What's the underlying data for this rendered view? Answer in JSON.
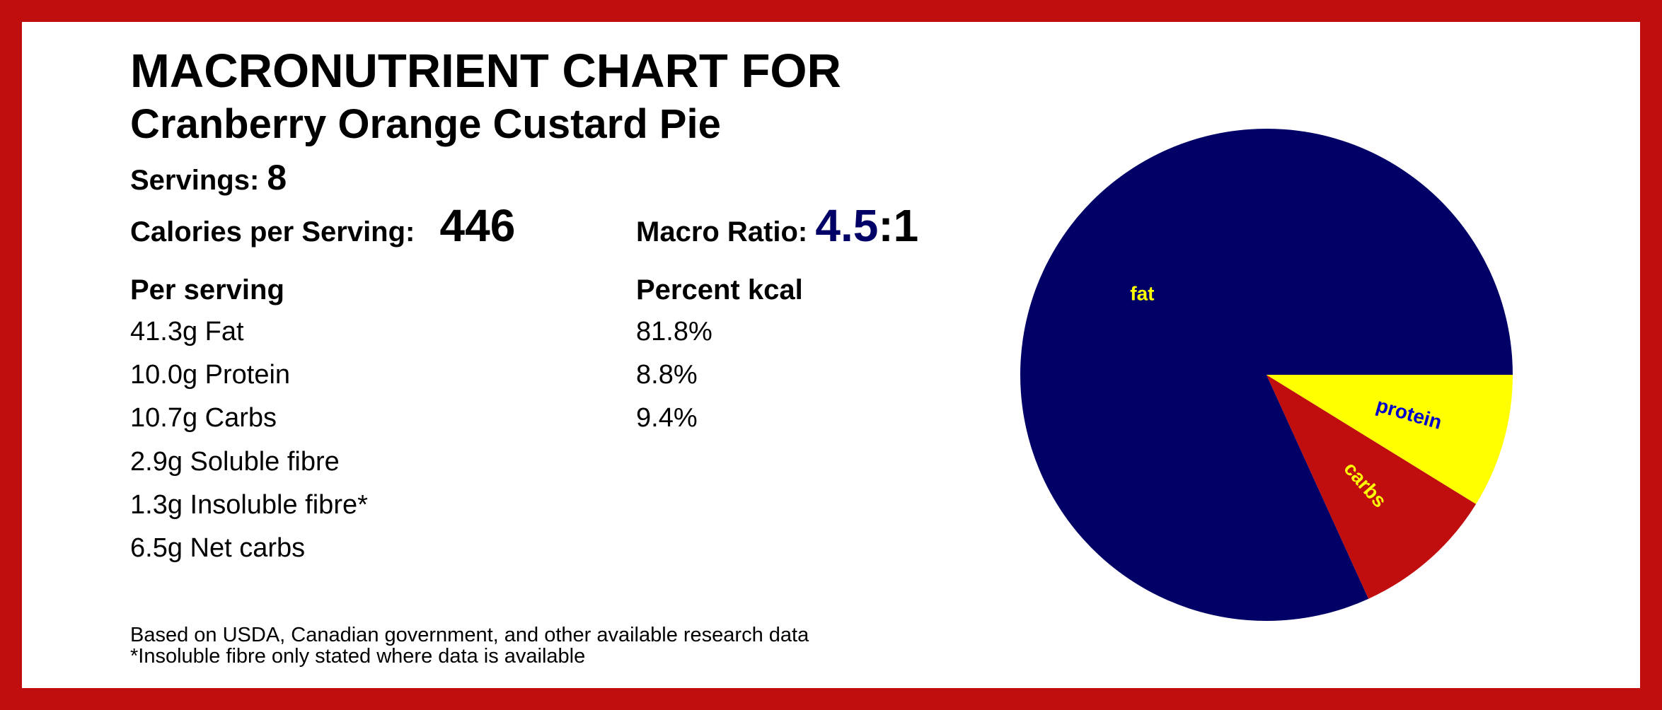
{
  "header": {
    "title": "MACRONUTRIENT CHART FOR",
    "subtitle": "Cranberry Orange Custard Pie"
  },
  "summary": {
    "servings_label": "Servings:",
    "servings_value": "8",
    "calories_label": "Calories per Serving:",
    "calories_value": "446",
    "ratio_label": "Macro Ratio:",
    "ratio_value": "4.5",
    "ratio_suffix": ":1"
  },
  "per_serving": {
    "heading": "Per serving",
    "rows": [
      "41.3g Fat",
      "10.0g Protein",
      "10.7g Carbs",
      "2.9g Soluble fibre",
      "1.3g Insoluble fibre*",
      "6.5g Net carbs"
    ]
  },
  "percent_kcal": {
    "heading": "Percent kcal",
    "rows": [
      "81.8%",
      "8.8%",
      "9.4%"
    ]
  },
  "footer": {
    "line1": "Based on USDA, Canadian government, and other available research data",
    "line2": "*Insoluble fibre only stated where data is available"
  },
  "colors": {
    "border": "#c00d0d",
    "fat": "#000066",
    "protein": "#ffff00",
    "carbs": "#c00d0d",
    "label_on_dark": "#ffff00",
    "label_on_light": "#0000cc"
  },
  "chart_data": {
    "type": "pie",
    "slices": [
      {
        "label": "fat",
        "value": 81.8,
        "color": "#000066",
        "label_color": "#ffff00"
      },
      {
        "label": "carbs",
        "value": 9.4,
        "color": "#c00d0d",
        "label_color": "#ffff00"
      },
      {
        "label": "protein",
        "value": 8.8,
        "color": "#ffff00",
        "label_color": "#0000cc"
      }
    ]
  }
}
